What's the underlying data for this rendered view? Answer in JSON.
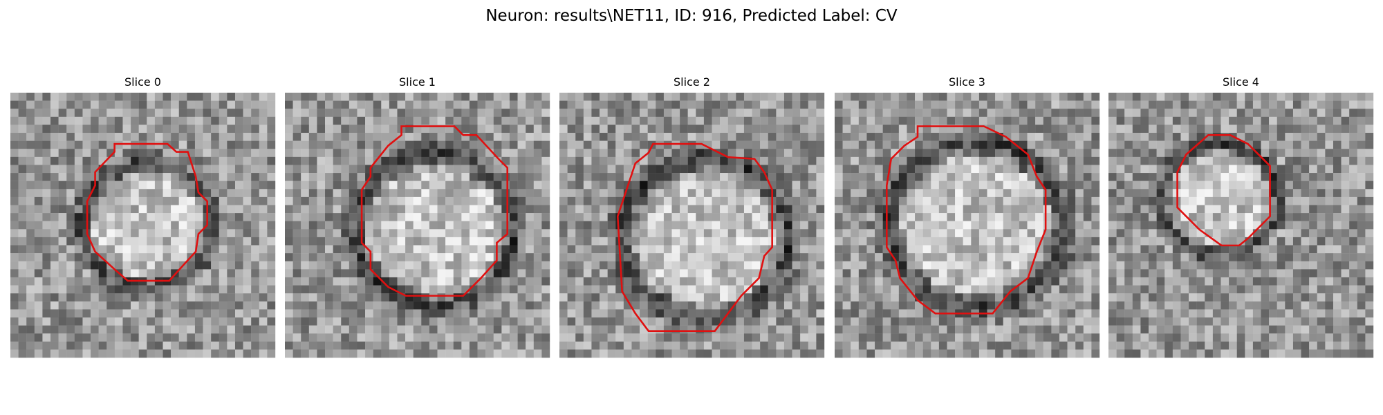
{
  "title": "Neuron: results\\NET11, ID: 916, Predicted Label: CV",
  "panels": [
    {
      "title": "Slice 0"
    },
    {
      "title": "Slice 1"
    },
    {
      "title": "Slice 2"
    },
    {
      "title": "Slice 3"
    },
    {
      "title": "Slice 4"
    }
  ]
}
